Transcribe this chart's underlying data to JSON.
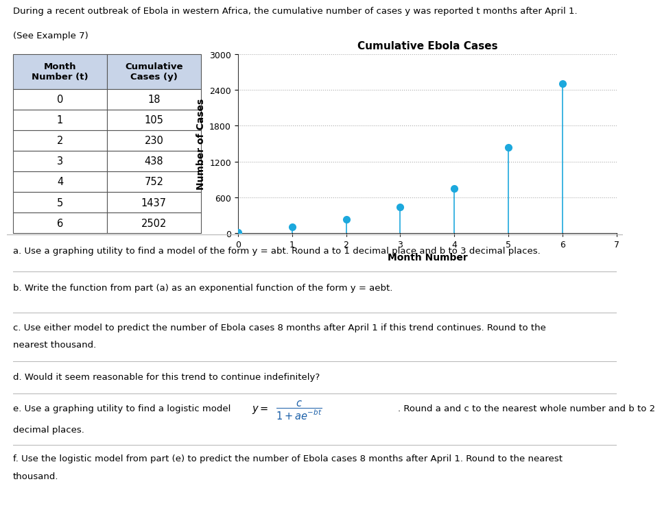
{
  "header_line1": "During a recent outbreak of Ebola in western Africa, the cumulative number of cases y was reported t months after April 1.",
  "header_line2": "(See Example 7)",
  "table": {
    "col1_header_line1": "Month",
    "col1_header_line2": "Number (t)",
    "col2_header_line1": "Cumulative",
    "col2_header_line2": "Cases (y)",
    "months": [
      0,
      1,
      2,
      3,
      4,
      5,
      6
    ],
    "cases": [
      18,
      105,
      230,
      438,
      752,
      1437,
      2502
    ]
  },
  "chart": {
    "title": "Cumulative Ebola Cases",
    "xlabel": "Month Number",
    "ylabel": "Number of Cases",
    "x_data": [
      0,
      1,
      2,
      3,
      4,
      5,
      6
    ],
    "y_data": [
      18,
      105,
      230,
      438,
      752,
      1437,
      2502
    ],
    "xlim": [
      0,
      7
    ],
    "ylim": [
      0,
      3000
    ],
    "yticks": [
      0,
      600,
      1200,
      1800,
      2400,
      3000
    ],
    "xticks": [
      0,
      1,
      2,
      3,
      4,
      5,
      6,
      7
    ],
    "dot_color": "#1CA8DD",
    "grid_color": "#aaaaaa"
  },
  "q_a": "a. Use a graphing utility to find a model of the form y = abt. Round a to 1 decimal place and b to 3 decimal places.",
  "q_b": "b. Write the function from part (a) as an exponential function of the form y = aebt.",
  "q_c_line1": "c. Use either model to predict the number of Ebola cases 8 months after April 1 if this trend continues. Round to the",
  "q_c_line2": "nearest thousand.",
  "q_d": "d. Would it seem reasonable for this trend to continue indefinitely?",
  "q_e_prefix": "e. Use a graphing utility to find a logistic model  ",
  "q_e_suffix": ". Round a and c to the nearest whole number and b to 2",
  "q_e_newline": "decimal places.",
  "q_f_line1": "f. Use the logistic model from part (e) to predict the number of Ebola cases 8 months after April 1. Round to the nearest",
  "q_f_line2": "thousand.",
  "bg_color": "#ffffff",
  "text_color": "#000000",
  "table_header_bg": "#c8d4e8",
  "table_border_color": "#555555",
  "separator_color": "#bbbbbb",
  "formula_color": "#1a5fa8"
}
